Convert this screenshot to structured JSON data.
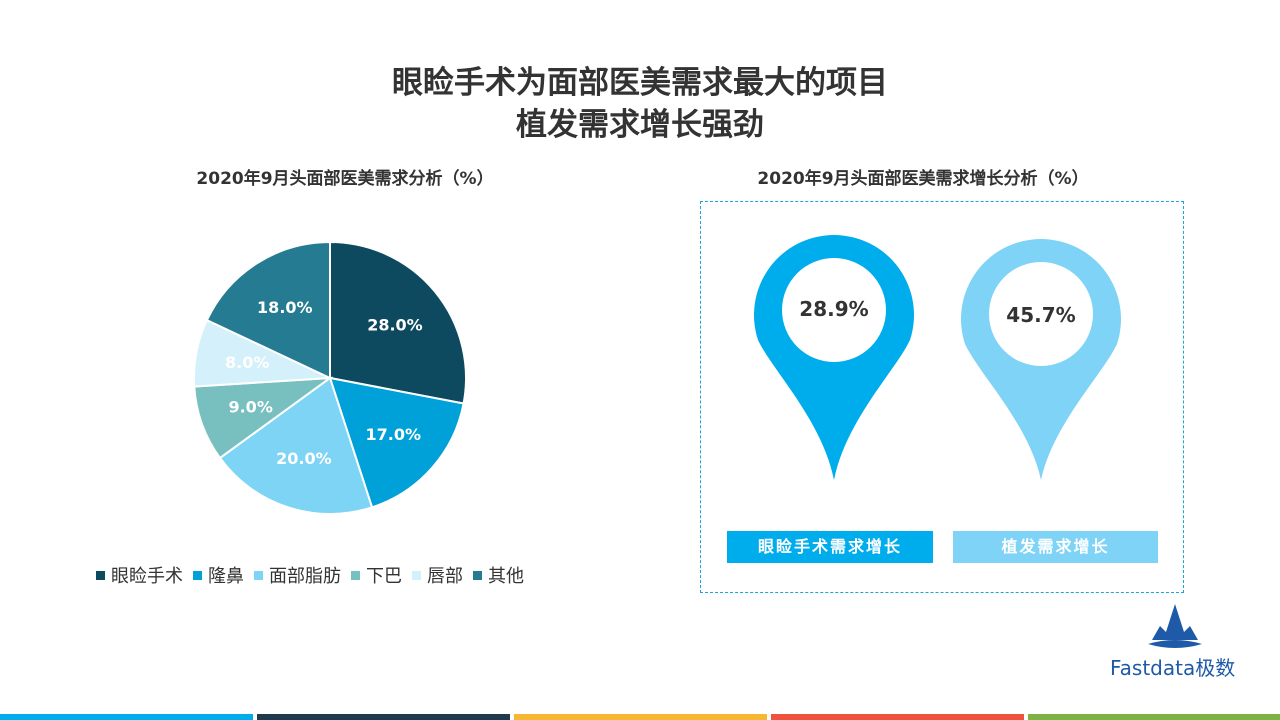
{
  "title": {
    "line1": "眼睑手术为面部医美需求最大的项目",
    "line2": "植发需求增长强劲"
  },
  "chart_data": [
    {
      "type": "pie",
      "title": "2020年9月头面部医美需求分析（%）",
      "categories": [
        "眼睑手术",
        "隆鼻",
        "面部脂肪",
        "下巴",
        "唇部",
        "其他"
      ],
      "values": [
        28.0,
        17.0,
        20.0,
        9.0,
        8.0,
        18.0
      ],
      "labels": [
        "28.0%",
        "17.0%",
        "20.0%",
        "9.0%",
        "8.0%",
        "18.0%"
      ],
      "colors": [
        "#0d4a5f",
        "#00a0d8",
        "#7dd4f5",
        "#78bfc0",
        "#d4f0fb",
        "#257b92"
      ],
      "legend": "bottom"
    },
    {
      "type": "bar",
      "title": "2020年9月头面部医美需求增长分析（%）",
      "categories": [
        "眼睑手术需求增长",
        "植发需求增长"
      ],
      "values": [
        28.9,
        45.7
      ],
      "labels": [
        "28.9%",
        "45.7%"
      ],
      "colors": [
        "#00adec",
        "#7ed3f6"
      ]
    }
  ],
  "logo": {
    "text": "Fastdata极数",
    "color": "#1e5aa8"
  },
  "footer_colors": [
    "#00adec",
    "#1f3a4d",
    "#f7b733",
    "#f0533d",
    "#7cb342"
  ]
}
